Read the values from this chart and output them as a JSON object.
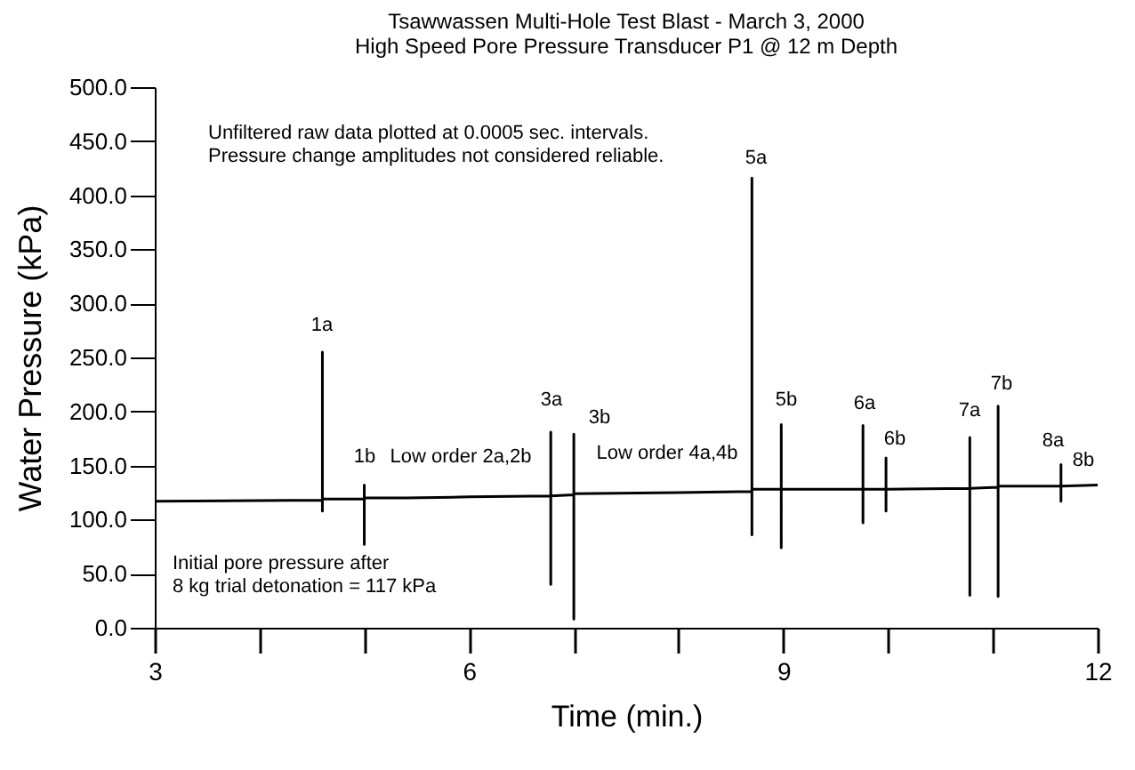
{
  "chart_data": {
    "type": "line",
    "title": "Tsawwassen Multi-Hole Test Blast - March 3, 2000",
    "subtitle": "High Speed Pore Pressure Transducer P1 @ 12 m Depth",
    "xlabel": "Time (min.)",
    "ylabel": "Water Pressure (kPa)",
    "x": [
      3,
      4.6,
      4.6,
      4.6,
      4.6,
      5.0,
      5.0,
      5.0,
      5.0,
      5.4,
      6,
      6.78,
      6.78,
      6.78,
      6.78,
      7.0,
      7.0,
      7.0,
      7.0,
      8,
      8.7,
      8.7,
      8.7,
      8.7,
      8.98,
      8.98,
      8.98,
      8.98,
      9.76,
      9.76,
      9.76,
      9.76,
      9.98,
      9.98,
      9.98,
      9.98,
      10.78,
      10.78,
      10.78,
      10.78,
      11.05,
      11.05,
      11.05,
      11.05,
      11.65,
      11.65,
      11.65,
      11.65,
      12
    ],
    "series": [
      {
        "color": "#000000",
        "values": [
          117,
          118,
          255,
          108,
          119,
          119,
          132,
          77,
          120,
          120,
          121,
          122,
          181,
          40,
          122,
          123,
          179,
          8,
          124,
          125,
          126,
          416,
          86,
          128,
          128,
          188,
          74,
          128,
          128,
          187,
          97,
          128,
          128,
          157,
          108,
          128,
          129,
          176,
          30,
          129,
          130,
          205,
          29,
          131,
          131,
          151,
          117,
          131,
          132
        ]
      }
    ],
    "xlim": [
      3,
      12
    ],
    "xticks": [
      3,
      {
        "value": 4,
        "label": null
      },
      {
        "value": 5,
        "label": null
      },
      6,
      {
        "value": 7,
        "label": null
      },
      {
        "value": 8,
        "label": null
      },
      9,
      {
        "value": 10,
        "label": null
      },
      {
        "value": 11,
        "label": null
      },
      12
    ],
    "ylim": [
      0,
      500
    ],
    "yticks": [
      {
        "value": 0,
        "label": "0.0"
      },
      {
        "value": 50,
        "label": "50.0"
      },
      {
        "value": 100,
        "label": "100.0"
      },
      {
        "value": 150,
        "label": "150.0"
      },
      {
        "value": 200,
        "label": "200.0"
      },
      {
        "value": 250,
        "label": "250.0"
      },
      {
        "value": 300,
        "label": "300.0"
      },
      {
        "value": 350,
        "label": "350.0"
      },
      {
        "value": 400,
        "label": "400.0"
      },
      {
        "value": 450,
        "label": "450.0"
      },
      {
        "value": 500,
        "label": "500.0"
      }
    ],
    "grid": false,
    "marker": "none",
    "line_style": "solid",
    "annotations": [
      "Unfiltered raw data plotted at 0.0005 sec. intervals.\nPressure change amplitudes not considered reliable.",
      "Initial pore pressure after\n8 kg trial detonation = 117 kPa",
      "1a",
      "1b",
      "Low order 2a,2b",
      "3a",
      "3b",
      "Low order 4a,4b",
      "5a",
      "5b",
      "6a",
      "6b",
      "7a",
      "7b",
      "8a",
      "8b"
    ]
  }
}
